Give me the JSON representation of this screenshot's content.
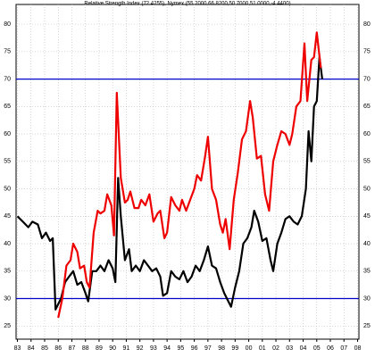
{
  "chart_data": {
    "type": "line",
    "title": "Relative Strength Index (72.4255), Nymex (55.2000,66.8200,50.7000,51.0000,-4.4400)",
    "xlim": [
      1982.9,
      2008.1
    ],
    "ylim": [
      22.6,
      83.6
    ],
    "yticks": [
      25,
      30,
      35,
      40,
      45,
      50,
      55,
      60,
      65,
      70,
      75,
      80
    ],
    "xticks": [
      {
        "value": 1983,
        "label": "83"
      },
      {
        "value": 1984,
        "label": "84"
      },
      {
        "value": 1985,
        "label": "85"
      },
      {
        "value": 1986,
        "label": "86"
      },
      {
        "value": 1987,
        "label": "87"
      },
      {
        "value": 1988,
        "label": "88"
      },
      {
        "value": 1989,
        "label": "89"
      },
      {
        "value": 1990,
        "label": "90"
      },
      {
        "value": 1991,
        "label": "91"
      },
      {
        "value": 1992,
        "label": "92"
      },
      {
        "value": 1993,
        "label": "93"
      },
      {
        "value": 1994,
        "label": "94"
      },
      {
        "value": 1995,
        "label": "95"
      },
      {
        "value": 1996,
        "label": "96"
      },
      {
        "value": 1997,
        "label": "97"
      },
      {
        "value": 1998,
        "label": "98"
      },
      {
        "value": 1999,
        "label": "99"
      },
      {
        "value": 2000,
        "label": "00"
      },
      {
        "value": 2001,
        "label": "01"
      },
      {
        "value": 2002,
        "label": "02"
      },
      {
        "value": 2003,
        "label": "03"
      },
      {
        "value": 2004,
        "label": "04"
      },
      {
        "value": 2005,
        "label": "05"
      },
      {
        "value": 2006,
        "label": "06"
      },
      {
        "value": 2007,
        "label": "07"
      },
      {
        "value": 2008,
        "label": "08"
      }
    ],
    "grid": true,
    "hlines": {
      "values": [
        30,
        70
      ],
      "color": "#0000cc"
    },
    "series": [
      {
        "color": "#000000",
        "x": [
          1983.0,
          1983.4,
          1983.8,
          1984.1,
          1984.5,
          1984.8,
          1985.1,
          1985.4,
          1985.6,
          1985.8,
          1986.2,
          1986.5,
          1986.8,
          1987.1,
          1987.4,
          1987.7,
          1988.0,
          1988.2,
          1988.5,
          1988.8,
          1989.1,
          1989.4,
          1989.7,
          1990.0,
          1990.2,
          1990.4,
          1990.6,
          1990.9,
          1991.2,
          1991.4,
          1991.7,
          1992.0,
          1992.3,
          1992.6,
          1992.9,
          1993.2,
          1993.5,
          1993.7,
          1994.0,
          1994.3,
          1994.6,
          1994.9,
          1995.2,
          1995.5,
          1995.8,
          1996.1,
          1996.4,
          1996.7,
          1997.0,
          1997.3,
          1997.6,
          1997.9,
          1998.2,
          1998.5,
          1998.7,
          1999.0,
          1999.3,
          1999.6,
          1999.9,
          2000.2,
          2000.4,
          2000.7,
          2001.0,
          2001.3,
          2001.6,
          2001.8,
          2002.1,
          2002.4,
          2002.7,
          2003.0,
          2003.3,
          2003.6,
          2003.9,
          2004.2,
          2004.4,
          2004.6,
          2004.8,
          2005.0,
          2005.2,
          2005.4
        ],
        "values": [
          45,
          44,
          43,
          44,
          43.5,
          41,
          42,
          40.5,
          41,
          28,
          30,
          33,
          34,
          35,
          32.5,
          33,
          31,
          29.5,
          35,
          35,
          36,
          35,
          37,
          35.5,
          33,
          52,
          45,
          37,
          39,
          35,
          36,
          35,
          37,
          36,
          35,
          35.5,
          34,
          30.5,
          31,
          35,
          34,
          33.5,
          35,
          33,
          34,
          36,
          35,
          37,
          39.5,
          36,
          35.5,
          33,
          31,
          29.5,
          28.5,
          32,
          35,
          40,
          41,
          43,
          46,
          44,
          40.5,
          41,
          37,
          35,
          40,
          42,
          44.5,
          45,
          44,
          43.5,
          45,
          50,
          60.5,
          55,
          65,
          66,
          74,
          70
        ]
      },
      {
        "color": "#ee0000",
        "x": [
          1986.0,
          1986.3,
          1986.6,
          1986.9,
          1987.1,
          1987.4,
          1987.6,
          1987.9,
          1988.1,
          1988.3,
          1988.6,
          1988.9,
          1989.1,
          1989.4,
          1989.6,
          1989.9,
          1990.1,
          1990.3,
          1990.6,
          1990.9,
          1991.1,
          1991.3,
          1991.6,
          1991.9,
          1992.1,
          1992.4,
          1992.7,
          1993.0,
          1993.3,
          1993.5,
          1993.8,
          1994.0,
          1994.3,
          1994.6,
          1994.9,
          1995.1,
          1995.4,
          1995.7,
          1996.0,
          1996.2,
          1996.5,
          1996.8,
          1997.0,
          1997.3,
          1997.6,
          1997.9,
          1998.1,
          1998.3,
          1998.6,
          1998.9,
          1999.2,
          1999.5,
          1999.8,
          2000.1,
          2000.3,
          2000.6,
          2000.9,
          2001.2,
          2001.5,
          2001.8,
          2002.1,
          2002.4,
          2002.7,
          2003.0,
          2003.2,
          2003.5,
          2003.8,
          2004.1,
          2004.3,
          2004.6,
          2004.8,
          2005.0,
          2005.3
        ],
        "values": [
          26.5,
          30,
          36,
          37,
          40,
          38.5,
          35.5,
          36,
          33,
          32,
          42,
          46,
          45.5,
          46,
          49,
          47,
          41.5,
          67.5,
          52,
          47.5,
          48,
          49.5,
          46.5,
          46.5,
          48,
          47,
          49,
          44,
          45.5,
          46,
          41,
          42,
          48.5,
          47,
          46,
          48,
          46,
          48,
          50,
          52.5,
          51.5,
          56,
          59.5,
          50,
          48,
          43.5,
          42,
          44.5,
          39,
          48,
          53,
          59,
          60.5,
          66,
          63,
          55.5,
          56,
          49,
          46,
          55,
          58,
          60.5,
          60,
          58,
          60,
          65,
          66,
          76.5,
          66,
          73.5,
          74,
          78.5,
          72
        ]
      }
    ]
  }
}
